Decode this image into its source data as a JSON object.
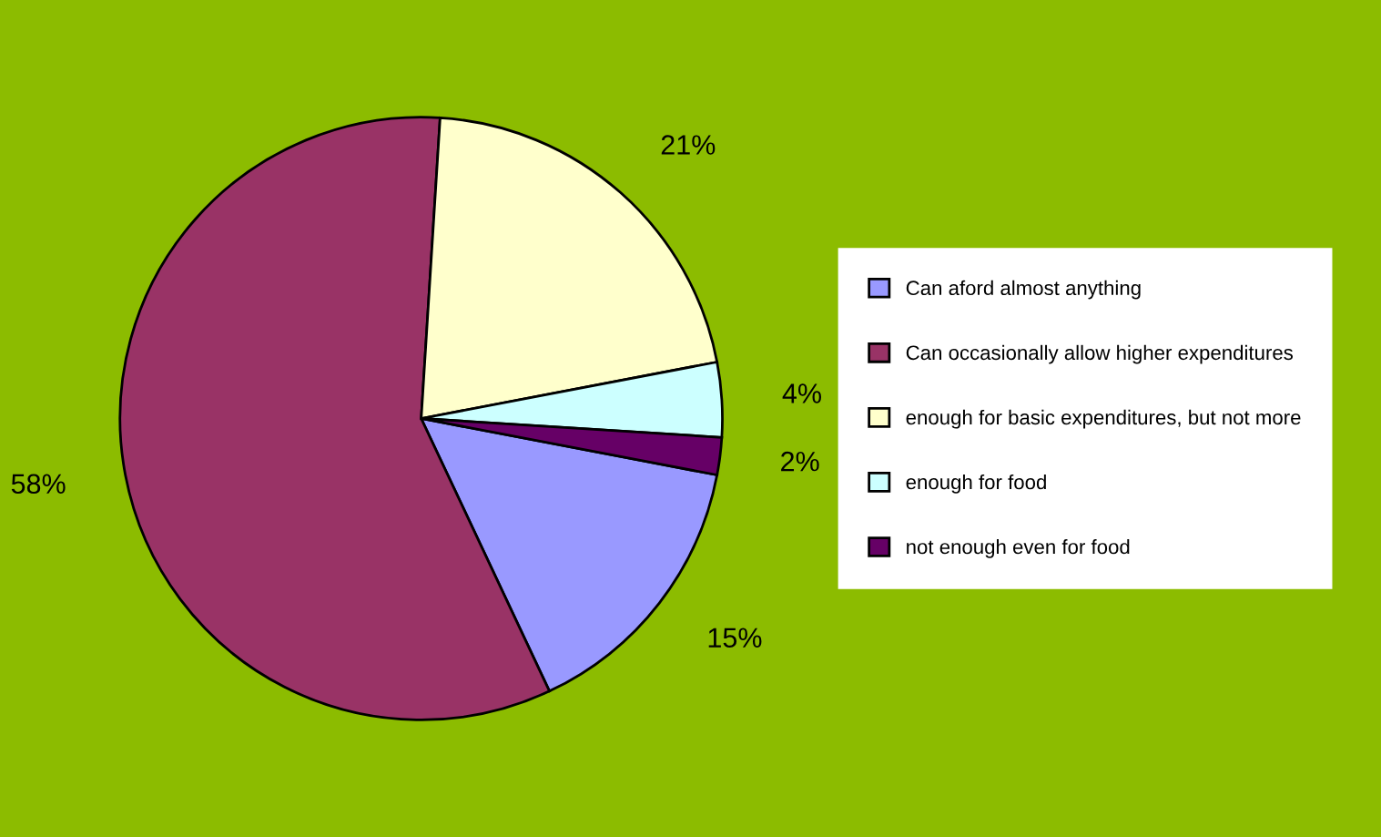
{
  "chart_data": {
    "type": "pie",
    "categories": [
      "Can aford almost anything",
      "Can occasionally allow higher expenditures",
      "enough for basic expenditures, but not more",
      "enough for food",
      "not enough even for food"
    ],
    "values": [
      15,
      58,
      21,
      4,
      2
    ],
    "colors": [
      "#9999ff",
      "#993366",
      "#ffffcc",
      "#ccffff",
      "#660066"
    ],
    "value_labels": [
      "15%",
      "58%",
      "21%",
      "4%",
      "2%"
    ],
    "legend": "right"
  }
}
